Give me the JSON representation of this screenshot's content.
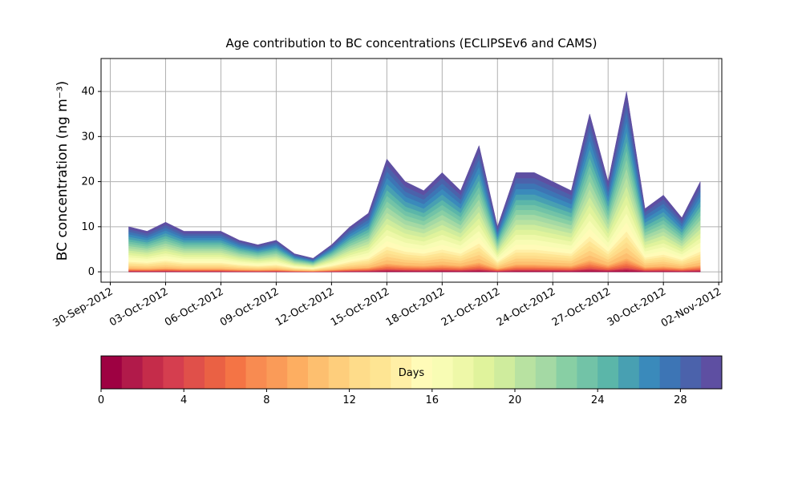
{
  "chart_data": {
    "type": "stacked_area",
    "title": "Age contribution to BC concentrations (ECLIPSEv6 and CAMS)",
    "y_label": "BC concentration (ng m⁻³)",
    "x": [
      "2012-10-01",
      "2012-10-02",
      "2012-10-03",
      "2012-10-04",
      "2012-10-05",
      "2012-10-06",
      "2012-10-07",
      "2012-10-08",
      "2012-10-09",
      "2012-10-10",
      "2012-10-11",
      "2012-10-12",
      "2012-10-13",
      "2012-10-14",
      "2012-10-15",
      "2012-10-16",
      "2012-10-17",
      "2012-10-18",
      "2012-10-19",
      "2012-10-20",
      "2012-10-21",
      "2012-10-22",
      "2012-10-23",
      "2012-10-24",
      "2012-10-25",
      "2012-10-26",
      "2012-10-27",
      "2012-10-28",
      "2012-10-29",
      "2012-10-30",
      "2012-10-31",
      "2012-11-01"
    ],
    "xlim": [
      "2012-09-29 12:00",
      "2012-11-02 04:00"
    ],
    "xticks": [
      {
        "value": "2012-09-30",
        "label": "30-Sep-2012"
      },
      {
        "value": "2012-10-03",
        "label": "03-Oct-2012"
      },
      {
        "value": "2012-10-06",
        "label": "06-Oct-2012"
      },
      {
        "value": "2012-10-09",
        "label": "09-Oct-2012"
      },
      {
        "value": "2012-10-12",
        "label": "12-Oct-2012"
      },
      {
        "value": "2012-10-15",
        "label": "15-Oct-2012"
      },
      {
        "value": "2012-10-18",
        "label": "18-Oct-2012"
      },
      {
        "value": "2012-10-21",
        "label": "21-Oct-2012"
      },
      {
        "value": "2012-10-24",
        "label": "24-Oct-2012"
      },
      {
        "value": "2012-10-27",
        "label": "27-Oct-2012"
      },
      {
        "value": "2012-10-30",
        "label": "30-Oct-2012"
      },
      {
        "value": "2012-11-02",
        "label": "02-Nov-2012"
      }
    ],
    "ylim": [
      -2.3,
      47.3
    ],
    "yticks": [
      0,
      10,
      20,
      30,
      40
    ],
    "grid": true,
    "series": [
      {
        "color": "#9e0142",
        "values": [
          0.05,
          0.045,
          0.055,
          0.045,
          0.045,
          0.045,
          0.035,
          0.03,
          0.035,
          0.02,
          0.015,
          0.03,
          0.05,
          0.065,
          0.125,
          0.1,
          0.09,
          0.11,
          0.09,
          0.14,
          0.05,
          0.11,
          0.11,
          0.1,
          0.09,
          0.175,
          0.1,
          0.2,
          0.07,
          0.085,
          0.06,
          0.1
        ]
      },
      {
        "color": "#b11a4a",
        "values": [
          0.05,
          0.045,
          0.055,
          0.045,
          0.045,
          0.045,
          0.035,
          0.03,
          0.035,
          0.02,
          0.015,
          0.03,
          0.05,
          0.065,
          0.125,
          0.1,
          0.09,
          0.11,
          0.09,
          0.14,
          0.05,
          0.11,
          0.11,
          0.1,
          0.09,
          0.175,
          0.1,
          0.2,
          0.07,
          0.085,
          0.06,
          0.1
        ]
      },
      {
        "color": "#c52c4a",
        "values": [
          0.05,
          0.045,
          0.055,
          0.045,
          0.045,
          0.045,
          0.035,
          0.03,
          0.035,
          0.02,
          0.015,
          0.03,
          0.05,
          0.065,
          0.125,
          0.1,
          0.09,
          0.11,
          0.09,
          0.14,
          0.05,
          0.11,
          0.11,
          0.1,
          0.09,
          0.175,
          0.1,
          0.2,
          0.07,
          0.085,
          0.06,
          0.1
        ]
      },
      {
        "color": "#d53e4f",
        "values": [
          0.05,
          0.045,
          0.055,
          0.045,
          0.045,
          0.045,
          0.035,
          0.03,
          0.035,
          0.02,
          0.015,
          0.03,
          0.05,
          0.065,
          0.125,
          0.1,
          0.09,
          0.11,
          0.09,
          0.14,
          0.05,
          0.11,
          0.11,
          0.1,
          0.09,
          0.175,
          0.1,
          0.2,
          0.07,
          0.085,
          0.06,
          0.1
        ]
      },
      {
        "color": "#e0504a",
        "values": [
          0.05,
          0.045,
          0.055,
          0.045,
          0.045,
          0.045,
          0.035,
          0.03,
          0.035,
          0.02,
          0.015,
          0.03,
          0.05,
          0.065,
          0.125,
          0.1,
          0.09,
          0.11,
          0.09,
          0.14,
          0.05,
          0.11,
          0.11,
          0.1,
          0.09,
          0.175,
          0.1,
          0.2,
          0.07,
          0.085,
          0.06,
          0.1
        ]
      },
      {
        "color": "#ea6144",
        "values": [
          0.1,
          0.09,
          0.11,
          0.09,
          0.09,
          0.09,
          0.07,
          0.06,
          0.07,
          0.04,
          0.03,
          0.06,
          0.1,
          0.13,
          0.25,
          0.2,
          0.18,
          0.22,
          0.18,
          0.28,
          0.1,
          0.22,
          0.22,
          0.2,
          0.18,
          0.35,
          0.2,
          0.4,
          0.14,
          0.17,
          0.12,
          0.2
        ]
      },
      {
        "color": "#f47445",
        "values": [
          0.1,
          0.09,
          0.11,
          0.09,
          0.09,
          0.09,
          0.07,
          0.06,
          0.07,
          0.04,
          0.03,
          0.06,
          0.1,
          0.13,
          0.25,
          0.2,
          0.18,
          0.22,
          0.18,
          0.28,
          0.1,
          0.22,
          0.22,
          0.2,
          0.18,
          0.35,
          0.2,
          0.4,
          0.14,
          0.17,
          0.12,
          0.2
        ]
      },
      {
        "color": "#f88b51",
        "values": [
          0.1,
          0.09,
          0.11,
          0.09,
          0.09,
          0.09,
          0.07,
          0.06,
          0.07,
          0.04,
          0.03,
          0.06,
          0.1,
          0.13,
          0.25,
          0.2,
          0.18,
          0.22,
          0.18,
          0.28,
          0.1,
          0.22,
          0.22,
          0.2,
          0.18,
          0.35,
          0.2,
          0.4,
          0.14,
          0.17,
          0.12,
          0.2
        ]
      },
      {
        "color": "#fa9b58",
        "values": [
          0.1,
          0.09,
          0.11,
          0.09,
          0.09,
          0.09,
          0.07,
          0.06,
          0.07,
          0.04,
          0.03,
          0.06,
          0.1,
          0.13,
          0.25,
          0.2,
          0.18,
          0.22,
          0.18,
          0.28,
          0.1,
          0.22,
          0.22,
          0.2,
          0.18,
          0.35,
          0.2,
          0.4,
          0.14,
          0.17,
          0.12,
          0.2
        ]
      },
      {
        "color": "#fdae61",
        "values": [
          0.1,
          0.09,
          0.11,
          0.09,
          0.09,
          0.09,
          0.07,
          0.06,
          0.07,
          0.04,
          0.03,
          0.06,
          0.1,
          0.13,
          0.25,
          0.2,
          0.18,
          0.22,
          0.18,
          0.28,
          0.1,
          0.22,
          0.22,
          0.2,
          0.18,
          0.35,
          0.2,
          0.4,
          0.14,
          0.17,
          0.12,
          0.2
        ]
      },
      {
        "color": "#fdbf6f",
        "values": [
          0.3,
          0.27,
          0.33,
          0.27,
          0.27,
          0.27,
          0.21,
          0.18,
          0.21,
          0.12,
          0.09,
          0.18,
          0.3,
          0.39,
          0.75,
          0.6,
          0.54,
          0.66,
          0.54,
          0.84,
          0.3,
          0.66,
          0.66,
          0.6,
          0.54,
          1.05,
          0.6,
          1.2,
          0.42,
          0.51,
          0.36,
          0.6
        ]
      },
      {
        "color": "#fece7c",
        "values": [
          0.3,
          0.27,
          0.33,
          0.27,
          0.27,
          0.27,
          0.21,
          0.18,
          0.21,
          0.12,
          0.09,
          0.18,
          0.3,
          0.39,
          0.75,
          0.6,
          0.54,
          0.66,
          0.54,
          0.84,
          0.3,
          0.66,
          0.66,
          0.6,
          0.54,
          1.05,
          0.6,
          1.2,
          0.42,
          0.51,
          0.36,
          0.6
        ]
      },
      {
        "color": "#fedc8a",
        "values": [
          0.3,
          0.27,
          0.33,
          0.27,
          0.27,
          0.27,
          0.21,
          0.18,
          0.21,
          0.12,
          0.09,
          0.18,
          0.3,
          0.39,
          0.75,
          0.6,
          0.54,
          0.66,
          0.54,
          0.84,
          0.3,
          0.66,
          0.66,
          0.6,
          0.54,
          1.05,
          0.6,
          1.2,
          0.42,
          0.51,
          0.36,
          0.6
        ]
      },
      {
        "color": "#fee593",
        "values": [
          0.3,
          0.27,
          0.33,
          0.27,
          0.27,
          0.27,
          0.21,
          0.18,
          0.21,
          0.12,
          0.09,
          0.18,
          0.3,
          0.39,
          0.75,
          0.6,
          0.54,
          0.66,
          0.54,
          0.84,
          0.3,
          0.66,
          0.66,
          0.6,
          0.54,
          1.05,
          0.6,
          1.2,
          0.42,
          0.51,
          0.36,
          0.6
        ]
      },
      {
        "color": "#ffefa6",
        "values": [
          0.3,
          0.27,
          0.33,
          0.27,
          0.27,
          0.27,
          0.21,
          0.18,
          0.21,
          0.12,
          0.09,
          0.18,
          0.3,
          0.39,
          0.75,
          0.6,
          0.54,
          0.66,
          0.54,
          0.84,
          0.3,
          0.66,
          0.66,
          0.6,
          0.54,
          1.05,
          0.6,
          1.2,
          0.42,
          0.51,
          0.36,
          0.6
        ]
      },
      {
        "color": "#fffbb8",
        "values": [
          0.5,
          0.45,
          0.55,
          0.45,
          0.45,
          0.45,
          0.35,
          0.3,
          0.35,
          0.2,
          0.15,
          0.3,
          0.5,
          0.65,
          1.25,
          1,
          0.9,
          1.1,
          0.9,
          1.4,
          0.5,
          1.1,
          1.1,
          1,
          0.9,
          1.75,
          1,
          2,
          0.7,
          0.85,
          0.6,
          1
        ]
      },
      {
        "color": "#f8fcb4",
        "values": [
          0.5,
          0.45,
          0.55,
          0.45,
          0.45,
          0.45,
          0.35,
          0.3,
          0.35,
          0.2,
          0.15,
          0.3,
          0.5,
          0.65,
          1.25,
          1,
          0.9,
          1.1,
          0.9,
          1.4,
          0.5,
          1.1,
          1.1,
          1,
          0.9,
          1.75,
          1,
          2,
          0.7,
          0.85,
          0.6,
          1
        ]
      },
      {
        "color": "#eef8a8",
        "values": [
          0.5,
          0.45,
          0.55,
          0.45,
          0.45,
          0.45,
          0.35,
          0.3,
          0.35,
          0.2,
          0.15,
          0.3,
          0.5,
          0.65,
          1.25,
          1,
          0.9,
          1.1,
          0.9,
          1.4,
          0.5,
          1.1,
          1.1,
          1,
          0.9,
          1.75,
          1,
          2,
          0.7,
          0.85,
          0.6,
          1
        ]
      },
      {
        "color": "#e0f39c",
        "values": [
          0.5,
          0.45,
          0.55,
          0.45,
          0.45,
          0.45,
          0.35,
          0.3,
          0.35,
          0.2,
          0.15,
          0.3,
          0.5,
          0.65,
          1.25,
          1,
          0.9,
          1.1,
          0.9,
          1.4,
          0.5,
          1.1,
          1.1,
          1,
          0.9,
          1.75,
          1,
          2,
          0.7,
          0.85,
          0.6,
          1
        ]
      },
      {
        "color": "#cfec9d",
        "values": [
          0.5,
          0.45,
          0.55,
          0.45,
          0.45,
          0.45,
          0.35,
          0.3,
          0.35,
          0.2,
          0.15,
          0.3,
          0.5,
          0.65,
          1.25,
          1,
          0.9,
          1.1,
          0.9,
          1.4,
          0.5,
          1.1,
          1.1,
          1,
          0.9,
          1.75,
          1,
          2,
          0.7,
          0.85,
          0.6,
          1
        ]
      },
      {
        "color": "#b8e2a1",
        "values": [
          0.5,
          0.45,
          0.55,
          0.45,
          0.45,
          0.45,
          0.35,
          0.3,
          0.35,
          0.2,
          0.15,
          0.3,
          0.5,
          0.65,
          1.25,
          1,
          0.9,
          1.1,
          0.9,
          1.4,
          0.5,
          1.1,
          1.1,
          1,
          0.9,
          1.75,
          1,
          2,
          0.7,
          0.85,
          0.6,
          1
        ]
      },
      {
        "color": "#a4d9a4",
        "values": [
          0.5,
          0.45,
          0.55,
          0.45,
          0.45,
          0.45,
          0.35,
          0.3,
          0.35,
          0.2,
          0.15,
          0.3,
          0.5,
          0.65,
          1.25,
          1,
          0.9,
          1.1,
          0.9,
          1.4,
          0.5,
          1.1,
          1.1,
          1,
          0.9,
          1.75,
          1,
          2,
          0.7,
          0.85,
          0.6,
          1
        ]
      },
      {
        "color": "#88cfa4",
        "values": [
          0.5,
          0.45,
          0.55,
          0.45,
          0.45,
          0.45,
          0.35,
          0.3,
          0.35,
          0.2,
          0.15,
          0.3,
          0.5,
          0.65,
          1.25,
          1,
          0.9,
          1.1,
          0.9,
          1.4,
          0.5,
          1.1,
          1.1,
          1,
          0.9,
          1.75,
          1,
          2,
          0.7,
          0.85,
          0.6,
          1
        ]
      },
      {
        "color": "#72c3a7",
        "values": [
          0.5,
          0.45,
          0.55,
          0.45,
          0.45,
          0.45,
          0.35,
          0.3,
          0.35,
          0.2,
          0.15,
          0.3,
          0.5,
          0.65,
          1.25,
          1,
          0.9,
          1.1,
          0.9,
          1.4,
          0.5,
          1.1,
          1.1,
          1,
          0.9,
          1.75,
          1,
          2,
          0.7,
          0.85,
          0.6,
          1
        ]
      },
      {
        "color": "#5bb6a9",
        "values": [
          0.5,
          0.45,
          0.55,
          0.45,
          0.45,
          0.45,
          0.35,
          0.3,
          0.35,
          0.2,
          0.15,
          0.3,
          0.5,
          0.65,
          1.25,
          1,
          0.9,
          1.1,
          0.9,
          1.4,
          0.5,
          1.1,
          1.1,
          1,
          0.9,
          1.75,
          1,
          2,
          0.7,
          0.85,
          0.6,
          1
        ]
      },
      {
        "color": "#48a0b2",
        "values": [
          0.55,
          0.495,
          0.605,
          0.495,
          0.495,
          0.495,
          0.385,
          0.33,
          0.385,
          0.22,
          0.165,
          0.33,
          0.55,
          0.715,
          1.375,
          1.1,
          0.99,
          1.21,
          0.99,
          1.54,
          0.55,
          1.21,
          1.21,
          1.1,
          0.99,
          1.925,
          1.1,
          2.2,
          0.77,
          0.935,
          0.66,
          1.1
        ]
      },
      {
        "color": "#3a8abb",
        "values": [
          0.55,
          0.495,
          0.605,
          0.495,
          0.495,
          0.495,
          0.385,
          0.33,
          0.385,
          0.22,
          0.165,
          0.33,
          0.55,
          0.715,
          1.375,
          1.1,
          0.99,
          1.21,
          0.99,
          1.54,
          0.55,
          1.21,
          1.21,
          1.1,
          0.99,
          1.925,
          1.1,
          2.2,
          0.77,
          0.935,
          0.66,
          1.1
        ]
      },
      {
        "color": "#3d75b5",
        "values": [
          0.55,
          0.495,
          0.605,
          0.495,
          0.495,
          0.495,
          0.385,
          0.33,
          0.385,
          0.22,
          0.165,
          0.33,
          0.55,
          0.715,
          1.375,
          1.1,
          0.99,
          1.21,
          0.99,
          1.54,
          0.55,
          1.21,
          1.21,
          1.1,
          0.99,
          1.925,
          1.1,
          2.2,
          0.77,
          0.935,
          0.66,
          1.1
        ]
      },
      {
        "color": "#4b62ab",
        "values": [
          0.55,
          0.495,
          0.605,
          0.495,
          0.495,
          0.495,
          0.385,
          0.33,
          0.385,
          0.22,
          0.165,
          0.33,
          0.55,
          0.715,
          1.375,
          1.1,
          0.99,
          1.21,
          0.99,
          1.54,
          0.55,
          1.21,
          1.21,
          1.1,
          0.99,
          1.925,
          1.1,
          2.2,
          0.77,
          0.935,
          0.66,
          1.1
        ]
      },
      {
        "color": "#5e4fa2",
        "values": [
          0.55,
          0.495,
          0.605,
          0.495,
          0.495,
          0.495,
          0.385,
          0.33,
          0.385,
          0.22,
          0.165,
          0.33,
          0.55,
          0.715,
          1.375,
          1.1,
          0.99,
          1.21,
          0.99,
          1.54,
          0.55,
          1.21,
          1.21,
          1.1,
          0.99,
          1.925,
          1.1,
          2.2,
          0.77,
          0.935,
          0.66,
          1.1
        ]
      }
    ],
    "colorbar": {
      "label": "Days",
      "lim": [
        0,
        30
      ],
      "ticks": [
        0,
        4,
        8,
        12,
        16,
        20,
        24,
        28
      ]
    }
  }
}
